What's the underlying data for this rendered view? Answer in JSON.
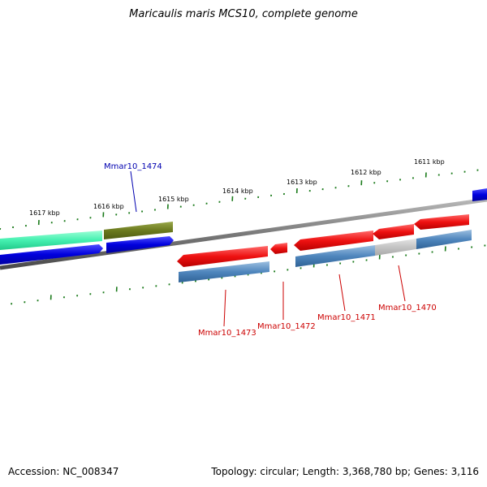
{
  "title": "Maricaulis maris MCS10, complete genome",
  "footer": {
    "accession": "Accession: NC_008347",
    "summary": "Topology: circular; Length: 3,368,780 bp; Genes: 3,116"
  },
  "colors": {
    "backbone": "#808080",
    "ticks": "#1a7a1a",
    "forward_label": "#0000b0",
    "reverse_label": "#cc0000"
  },
  "ticks": [
    {
      "label": "1617 kbp"
    },
    {
      "label": "1616 kbp"
    },
    {
      "label": "1615 kbp"
    },
    {
      "label": "1614 kbp"
    },
    {
      "label": "1613 kbp"
    },
    {
      "label": "1612 kbp"
    },
    {
      "label": "1611 kbp"
    }
  ],
  "genes": [
    {
      "name": "Mmar10_1474",
      "color": "#0000b0"
    },
    {
      "name": "Mmar10_1473",
      "color": "#cc0000"
    },
    {
      "name": "Mmar10_1472",
      "color": "#cc0000"
    },
    {
      "name": "Mmar10_1471",
      "color": "#cc0000"
    },
    {
      "name": "Mmar10_1470",
      "color": "#cc0000"
    }
  ]
}
